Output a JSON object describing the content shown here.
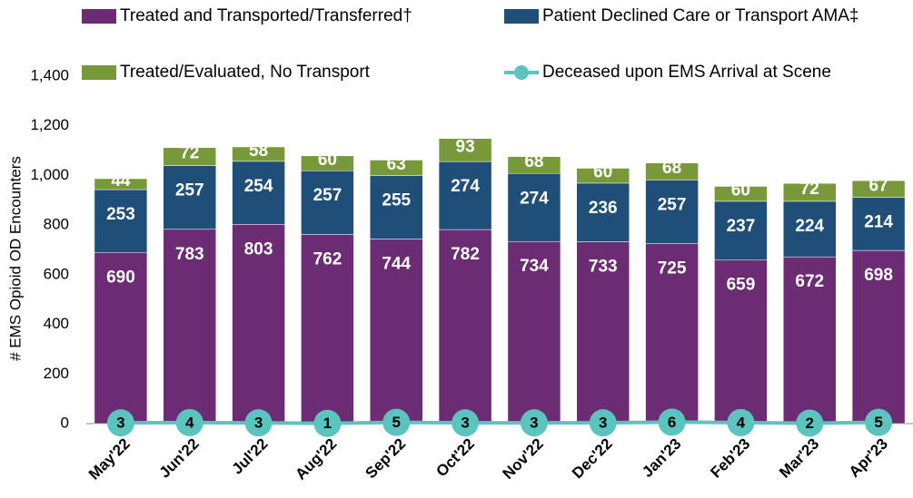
{
  "chart_data": {
    "type": "stacked_bar_line",
    "ylabel": "# EMS Opioid OD Encounters",
    "categories": [
      "May'22",
      "Jun'22",
      "Jul'22",
      "Aug'22",
      "Sep'22",
      "Oct'22",
      "Nov'22",
      "Dec'22",
      "Jan'23",
      "Feb'23",
      "Mar'23",
      "Apr'23"
    ],
    "series": [
      {
        "name": "Treated and Transported/Transferred†",
        "color": "#6b2c74",
        "kind": "bar",
        "values": [
          690,
          783,
          803,
          762,
          744,
          782,
          734,
          733,
          725,
          659,
          672,
          698
        ]
      },
      {
        "name": "Patient Declined Care or Transport AMA‡",
        "color": "#1f4e79",
        "kind": "bar",
        "values": [
          253,
          257,
          254,
          257,
          255,
          274,
          274,
          236,
          257,
          237,
          224,
          214
        ]
      },
      {
        "name": "Treated/Evaluated, No Transport",
        "color": "#77993a",
        "kind": "bar",
        "values": [
          44,
          72,
          58,
          60,
          63,
          93,
          68,
          60,
          68,
          60,
          72,
          67
        ]
      },
      {
        "name": "Deceased upon EMS Arrival at Scene",
        "color": "#5bc4bf",
        "kind": "line",
        "values": [
          3,
          4,
          3,
          1,
          5,
          3,
          3,
          3,
          6,
          4,
          2,
          5
        ]
      }
    ],
    "ylim": [
      0,
      1400
    ],
    "yticks": [
      0,
      200,
      400,
      600,
      800,
      {
        "value": 1000,
        "label": "1,000"
      },
      {
        "value": 1200,
        "label": "1,200"
      },
      {
        "value": 1400,
        "label": "1,400"
      }
    ]
  }
}
